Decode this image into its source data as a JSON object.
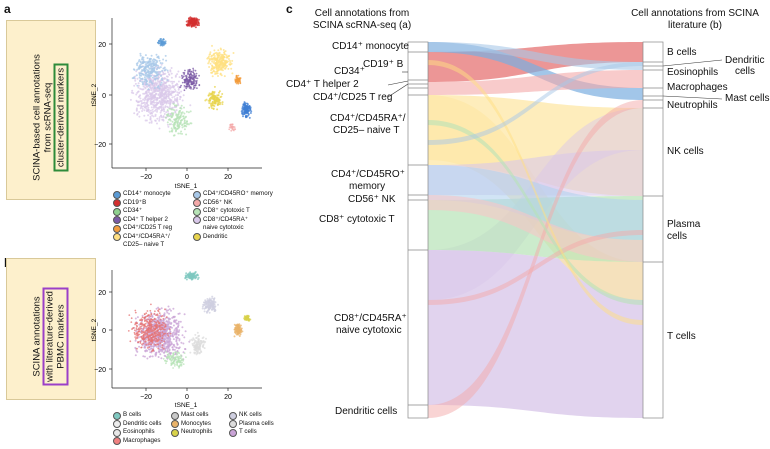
{
  "panels": {
    "a": {
      "letter": "a",
      "side_line1": "SCINA-based cell annotations",
      "side_line2": "from scRNA-seq",
      "side_line3": "cluster-derived markers",
      "xaxis": "tSNE_1",
      "yaxis": "tSNE_2",
      "yticks": [
        "20",
        "0",
        "−20"
      ],
      "xticks": [
        "−20",
        "0",
        "20"
      ],
      "legend": [
        {
          "label": "CD14⁺ monocyte",
          "color": "#5b9bd5"
        },
        {
          "label": "CD4⁺/CD45RO⁺ memory",
          "color": "#a8c8e8"
        },
        {
          "label": "CD19⁺B",
          "color": "#d32f2f"
        },
        {
          "label": "CD56⁺ NK",
          "color": "#f4a9a9"
        },
        {
          "label": "CD34⁺",
          "color": "#8fd18f"
        },
        {
          "label": "CD8⁺ cytotoxic T",
          "color": "#b7e3b7"
        },
        {
          "label": "CD4⁺ T helper 2",
          "color": "#7b5aa6"
        },
        {
          "label": "CD8⁺/CD45RA⁺",
          "color": "#d9c8ea"
        },
        {
          "label": "CD4⁺/CD25 T reg",
          "color": "#f39c3c"
        },
        {
          "label": "naive cytotoxic",
          "color": null
        },
        {
          "label": "CD4⁺/CD45RA⁺/",
          "color": "#ffe082"
        },
        {
          "label": "Dendritic",
          "color": "#e8d44d"
        },
        {
          "label": "CD25– naive T",
          "color": null
        }
      ]
    },
    "b": {
      "letter": "b",
      "side_line1": "SCINA annotations",
      "side_line2": "with literature-derived",
      "side_line3": "PBMC markers",
      "xaxis": "tSNE_1",
      "yaxis": "tSNE_2",
      "yticks": [
        "20",
        "0",
        "−20"
      ],
      "xticks": [
        "−20",
        "0",
        "20"
      ],
      "legend": [
        {
          "label": "B cells",
          "color": "#7fc8c0"
        },
        {
          "label": "Mast cells",
          "color": "#c9c9c9"
        },
        {
          "label": "NK cells",
          "color": "#cfcfe0"
        },
        {
          "label": "Dendritic cells",
          "color": "#ededed"
        },
        {
          "label": "Monocytes",
          "color": "#e9b36a"
        },
        {
          "label": "Plasma cells",
          "color": "#dcdcdc"
        },
        {
          "label": "Eosinophils",
          "color": "#e8e8e8"
        },
        {
          "label": "Neutrophils",
          "color": "#d8d24a"
        },
        {
          "label": "T cells",
          "color": "#c9a3d6"
        },
        {
          "label": "Macrophages",
          "color": "#f08080"
        }
      ]
    },
    "c": {
      "letter": "c",
      "left_header": "Cell annotations from SCINA scRNA-seq (a)",
      "right_header": "Cell annotations from SCINA literature (b)",
      "left_labels": [
        "CD14⁺ monocyte",
        "CD19⁺ B",
        "CD34⁺",
        "CD4⁺ T helper 2",
        "CD4⁺/CD25 T reg",
        "CD4⁺/CD45RA⁺/",
        "CD25– naive T",
        "CD4⁺/CD45RO⁺",
        "memory",
        "CD56⁺ NK",
        "CD8⁺ cytotoxic T",
        "CD8⁺/CD45RA⁺",
        "naive cytotoxic",
        "Dendritic cells"
      ],
      "right_labels": [
        "B cells",
        "Dendritic",
        "cells",
        "Eosinophils",
        "Macrophages",
        "Mast cells",
        "Neutrophils",
        "NK cells",
        "Plasma",
        "cells",
        "T cells"
      ]
    }
  }
}
